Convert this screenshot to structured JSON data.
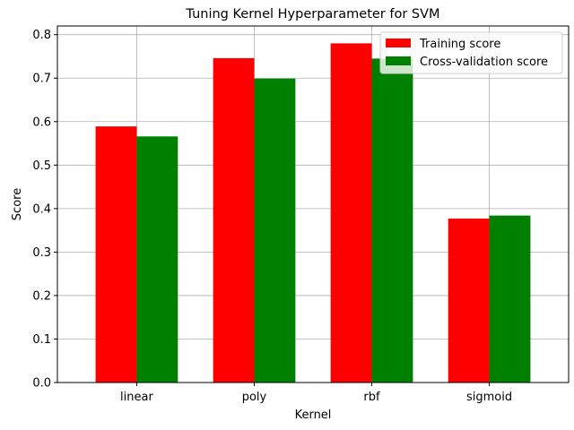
{
  "chart_data": {
    "type": "bar",
    "title": "Tuning Kernel Hyperparameter for SVM",
    "xlabel": "Kernel",
    "ylabel": "Score",
    "categories": [
      "linear",
      "poly",
      "rbf",
      "sigmoid"
    ],
    "series": [
      {
        "name": "Training score",
        "color": "#ff0000",
        "values": [
          0.589,
          0.746,
          0.78,
          0.377
        ]
      },
      {
        "name": "Cross-validation score",
        "color": "#008000",
        "values": [
          0.566,
          0.699,
          0.745,
          0.384
        ]
      }
    ],
    "ylim": [
      0,
      0.82
    ],
    "yticks": [
      0.0,
      0.1,
      0.2,
      0.3,
      0.4,
      0.5,
      0.6,
      0.7,
      0.8
    ],
    "ytick_labels": [
      "0.0",
      "0.1",
      "0.2",
      "0.3",
      "0.4",
      "0.5",
      "0.6",
      "0.7",
      "0.8"
    ],
    "grid": true,
    "legend_position": "top-right"
  }
}
